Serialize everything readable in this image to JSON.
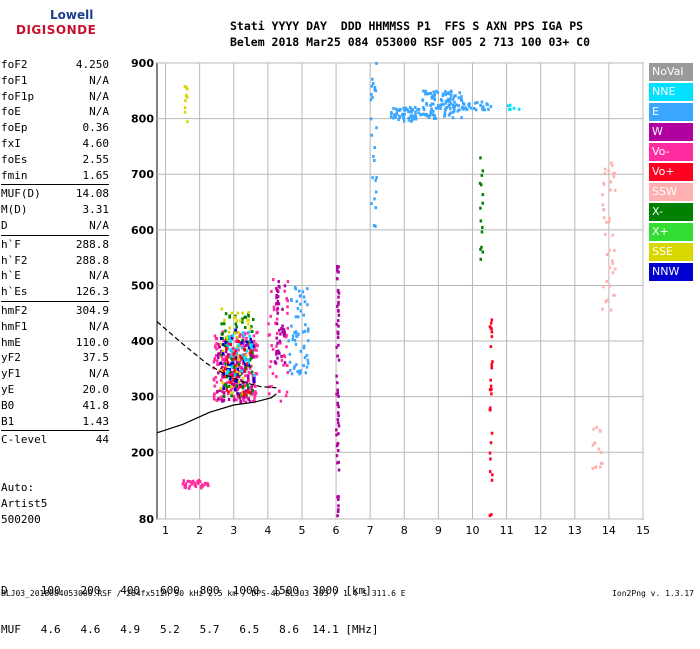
{
  "logo": {
    "line1": "Lowell",
    "line2": "DIGISONDE"
  },
  "header": {
    "line1": "Stati YYYY DAY  DDD HHMMSS P1  FFS S AXN PPS IGA PS",
    "line2": "Belem 2018 Mar25 084 053000 RSF 005 2 713 100 03+ C0"
  },
  "params": [
    {
      "label": "foF2",
      "value": "4.250"
    },
    {
      "label": "foF1",
      "value": "N/A"
    },
    {
      "label": "foF1p",
      "value": "N/A"
    },
    {
      "label": "foE",
      "value": "N/A"
    },
    {
      "label": "foEp",
      "value": "0.36"
    },
    {
      "label": "fxI",
      "value": "4.60"
    },
    {
      "label": "foEs",
      "value": "2.55"
    },
    {
      "label": "fmin",
      "value": "1.65"
    },
    {
      "label": "MUF(D)",
      "value": "14.08"
    },
    {
      "label": "M(D)",
      "value": "3.31"
    },
    {
      "label": "D",
      "value": "N/A"
    },
    {
      "label": "h`F",
      "value": "288.8"
    },
    {
      "label": "h`F2",
      "value": "288.8"
    },
    {
      "label": "h`E",
      "value": "N/A"
    },
    {
      "label": "h`Es",
      "value": "126.3"
    },
    {
      "label": "hmF2",
      "value": "304.9"
    },
    {
      "label": "hmF1",
      "value": "N/A"
    },
    {
      "label": "hmE",
      "value": "110.0"
    },
    {
      "label": "yF2",
      "value": "37.5"
    },
    {
      "label": "yF1",
      "value": "N/A"
    },
    {
      "label": "yE",
      "value": "20.0"
    },
    {
      "label": "B0",
      "value": "41.8"
    },
    {
      "label": "B1",
      "value": "1.43"
    },
    {
      "label": "C-level",
      "value": "44"
    }
  ],
  "artist": {
    "line1": "Auto:",
    "line2": "Artist5",
    "line3": "500200"
  },
  "legend": [
    {
      "label": "NoVal",
      "color": "#9a9a9a"
    },
    {
      "label": "NNE",
      "color": "#00e0ff"
    },
    {
      "label": "E",
      "color": "#3aa6ff"
    },
    {
      "label": "W",
      "color": "#b000a0"
    },
    {
      "label": "Vo-",
      "color": "#ff2ca0"
    },
    {
      "label": "Vo+",
      "color": "#ff0020"
    },
    {
      "label": "SSW",
      "color": "#ffb0b0"
    },
    {
      "label": "X-",
      "color": "#008000"
    },
    {
      "label": "X+",
      "color": "#33dd33"
    },
    {
      "label": "SSE",
      "color": "#d8d800"
    },
    {
      "label": "NNW",
      "color": "#0000d0"
    }
  ],
  "chart_data": {
    "type": "scatter",
    "title": "",
    "xlabel": "",
    "ylabel": "",
    "xlim": [
      0.75,
      15
    ],
    "ylim": [
      80,
      900
    ],
    "x_ticks": [
      "1",
      "2",
      "3",
      "4",
      "5",
      "6",
      "7",
      "8",
      "9",
      "10",
      "11",
      "12",
      "13",
      "14",
      "15"
    ],
    "y_ticks": [
      "80",
      "200",
      "300",
      "400",
      "500",
      "600",
      "700",
      "800",
      "900"
    ],
    "y_tick_values": [
      80,
      200,
      300,
      400,
      500,
      600,
      700,
      800,
      900
    ],
    "grid": true,
    "series": [
      {
        "name": "E",
        "color": "#3aa6ff",
        "clusters": [
          {
            "x": [
              7.6,
              8.5
            ],
            "y": [
              795,
              820
            ],
            "n": 60
          },
          {
            "x": [
              8.5,
              9.7
            ],
            "y": [
              800,
              850
            ],
            "n": 110
          },
          {
            "x": [
              9.7,
              10.6
            ],
            "y": [
              815,
              830
            ],
            "n": 25
          },
          {
            "x": [
              4.6,
              5.2
            ],
            "y": [
              340,
              500
            ],
            "n": 60
          },
          {
            "x": [
              7.0,
              7.2
            ],
            "y": [
              600,
              900
            ],
            "n": 25
          }
        ]
      },
      {
        "name": "Vo-",
        "color": "#ff2ca0",
        "clusters": [
          {
            "x": [
              2.4,
              3.7
            ],
            "y": [
              290,
              420
            ],
            "n": 220
          },
          {
            "x": [
              1.5,
              2.3
            ],
            "y": [
              135,
              150
            ],
            "n": 35
          },
          {
            "x": [
              4.0,
              4.6
            ],
            "y": [
              290,
              520
            ],
            "n": 50
          }
        ]
      },
      {
        "name": "W",
        "color": "#b000a0",
        "clusters": [
          {
            "x": [
              2.5,
              3.6
            ],
            "y": [
              290,
              400
            ],
            "n": 90
          },
          {
            "x": [
              6.0,
              6.08
            ],
            "y": [
              85,
              580
            ],
            "n": 60
          },
          {
            "x": [
              4.2,
              4.5
            ],
            "y": [
              360,
              520
            ],
            "n": 40
          }
        ]
      },
      {
        "name": "X-",
        "color": "#008000",
        "clusters": [
          {
            "x": [
              2.6,
              3.6
            ],
            "y": [
              300,
              450
            ],
            "n": 70
          },
          {
            "x": [
              10.2,
              10.3
            ],
            "y": [
              540,
              740
            ],
            "n": 15
          }
        ]
      },
      {
        "name": "SSE",
        "color": "#d8d800",
        "clusters": [
          {
            "x": [
              2.6,
              3.5
            ],
            "y": [
              300,
              460
            ],
            "n": 50
          },
          {
            "x": [
              1.55,
              1.65
            ],
            "y": [
              790,
              880
            ],
            "n": 10
          }
        ]
      },
      {
        "name": "NNW",
        "color": "#0000d0",
        "clusters": [
          {
            "x": [
              2.6,
              3.6
            ],
            "y": [
              300,
              420
            ],
            "n": 40
          }
        ]
      },
      {
        "name": "NNE",
        "color": "#00e0ff",
        "clusters": [
          {
            "x": [
              2.8,
              3.6
            ],
            "y": [
              330,
              420
            ],
            "n": 40
          },
          {
            "x": [
              11.0,
              11.4
            ],
            "y": [
              815,
              830
            ],
            "n": 6
          }
        ]
      },
      {
        "name": "Vo+",
        "color": "#ff0020",
        "clusters": [
          {
            "x": [
              2.7,
              3.5
            ],
            "y": [
              300,
              400
            ],
            "n": 40
          },
          {
            "x": [
              10.5,
              10.58
            ],
            "y": [
              85,
              440
            ],
            "n": 30
          }
        ]
      },
      {
        "name": "SSW",
        "color": "#ffb0b0",
        "clusters": [
          {
            "x": [
              13.8,
              14.2
            ],
            "y": [
              440,
              720
            ],
            "n": 40
          },
          {
            "x": [
              13.5,
              13.8
            ],
            "y": [
              170,
              260
            ],
            "n": 15
          }
        ]
      }
    ],
    "traces": [
      {
        "style": "solid",
        "x": [
          0.75,
          1.5,
          2.3,
          3.0,
          3.6,
          4.1,
          4.25
        ],
        "y": [
          235,
          250,
          272,
          285,
          290,
          298,
          305
        ]
      },
      {
        "style": "dashed",
        "x": [
          0.75,
          1.5,
          2.2,
          2.8,
          3.4,
          3.8,
          4.25
        ],
        "y": [
          435,
          395,
          360,
          338,
          324,
          318,
          316
        ]
      }
    ]
  },
  "bottom": {
    "line1": "D     100   200   400   600   800  1000  1500  3000 [km]",
    "line2": "MUF   4.6   4.6   4.9   5.2   5.7   6.5   8.6  14.1 [MHz]"
  },
  "footer": "BLJ03_2018084053000.RSF / 284fx512h 50 kHz 2.5 km / DPS-4D BLJ03 103 / 1.4 S 311.6 E",
  "version": "Ion2Png v. 1.3.17"
}
